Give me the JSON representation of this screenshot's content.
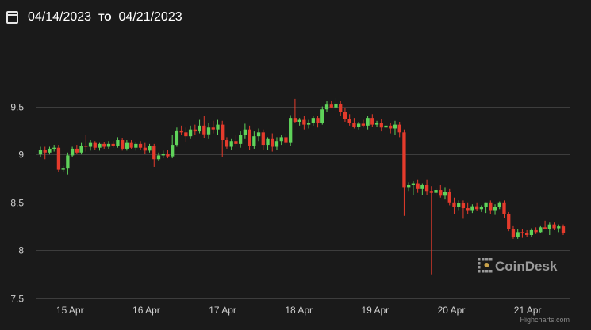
{
  "header": {
    "from_date": "04/14/2023",
    "to_label": "TO",
    "to_date": "04/21/2023"
  },
  "watermark": "CoinDesk",
  "credit": "Highcharts.com",
  "colors": {
    "up": "#5fd35a",
    "down": "#e53b2c",
    "grid": "#3d3d3d",
    "background": "#1a1a1a"
  },
  "chart_data": {
    "type": "candlestick",
    "ylim": [
      7.5,
      10.0
    ],
    "yticks": [
      7.5,
      8,
      8.5,
      9,
      9.5
    ],
    "xlim": [
      14.55,
      21.55
    ],
    "xticks": [
      {
        "x": 15,
        "label": "15 Apr"
      },
      {
        "x": 16,
        "label": "16 Apr"
      },
      {
        "x": 17,
        "label": "17 Apr"
      },
      {
        "x": 18,
        "label": "18 Apr"
      },
      {
        "x": 19,
        "label": "19 Apr"
      },
      {
        "x": 20,
        "label": "20 Apr"
      },
      {
        "x": 21,
        "label": "21 Apr"
      }
    ],
    "grid": true,
    "candles": [
      [
        9.0,
        9.08,
        8.97,
        9.05
      ],
      [
        9.05,
        9.08,
        8.95,
        9.02
      ],
      [
        9.02,
        9.08,
        9.0,
        9.06
      ],
      [
        9.06,
        9.1,
        9.03,
        9.07
      ],
      [
        9.07,
        9.1,
        8.82,
        8.84
      ],
      [
        8.84,
        8.88,
        8.82,
        8.86
      ],
      [
        8.86,
        9.02,
        8.79,
        8.99
      ],
      [
        8.99,
        9.08,
        8.97,
        9.06
      ],
      [
        9.06,
        9.1,
        9.01,
        9.02
      ],
      [
        9.02,
        9.12,
        9.0,
        9.09
      ],
      [
        9.09,
        9.2,
        9.03,
        9.08
      ],
      [
        9.08,
        9.15,
        9.04,
        9.12
      ],
      [
        9.12,
        9.14,
        9.05,
        9.07
      ],
      [
        9.07,
        9.12,
        9.04,
        9.11
      ],
      [
        9.11,
        9.13,
        9.06,
        9.08
      ],
      [
        9.08,
        9.14,
        9.06,
        9.11
      ],
      [
        9.11,
        9.14,
        9.07,
        9.09
      ],
      [
        9.09,
        9.18,
        9.07,
        9.15
      ],
      [
        9.15,
        9.17,
        9.04,
        9.06
      ],
      [
        9.06,
        9.15,
        9.04,
        9.12
      ],
      [
        9.12,
        9.15,
        9.06,
        9.07
      ],
      [
        9.07,
        9.13,
        9.04,
        9.11
      ],
      [
        9.11,
        9.14,
        9.05,
        9.07
      ],
      [
        9.07,
        9.12,
        9.01,
        9.04
      ],
      [
        9.04,
        9.11,
        9.02,
        9.09
      ],
      [
        9.09,
        9.11,
        8.87,
        8.95
      ],
      [
        8.95,
        9.02,
        8.93,
        8.99
      ],
      [
        8.99,
        9.04,
        8.96,
        9.01
      ],
      [
        9.01,
        9.05,
        8.96,
        8.98
      ],
      [
        8.98,
        9.2,
        8.96,
        9.1
      ],
      [
        9.1,
        9.28,
        9.08,
        9.25
      ],
      [
        9.25,
        9.3,
        9.2,
        9.23
      ],
      [
        9.23,
        9.28,
        9.13,
        9.19
      ],
      [
        9.19,
        9.3,
        9.16,
        9.26
      ],
      [
        9.26,
        9.31,
        9.2,
        9.24
      ],
      [
        9.24,
        9.36,
        9.22,
        9.3
      ],
      [
        9.3,
        9.4,
        9.17,
        9.21
      ],
      [
        9.21,
        9.33,
        9.16,
        9.28
      ],
      [
        9.28,
        9.35,
        9.22,
        9.26
      ],
      [
        9.26,
        9.36,
        9.2,
        9.31
      ],
      [
        9.31,
        9.35,
        8.97,
        9.15
      ],
      [
        9.15,
        9.18,
        9.06,
        9.08
      ],
      [
        9.08,
        9.16,
        9.05,
        9.14
      ],
      [
        9.14,
        9.2,
        9.08,
        9.11
      ],
      [
        9.11,
        9.24,
        9.07,
        9.2
      ],
      [
        9.2,
        9.32,
        9.16,
        9.26
      ],
      [
        9.26,
        9.3,
        9.05,
        9.09
      ],
      [
        9.09,
        9.24,
        9.06,
        9.19
      ],
      [
        9.19,
        9.27,
        9.14,
        9.23
      ],
      [
        9.23,
        9.26,
        9.05,
        9.1
      ],
      [
        9.1,
        9.18,
        9.05,
        9.16
      ],
      [
        9.16,
        9.22,
        9.03,
        9.08
      ],
      [
        9.08,
        9.18,
        9.05,
        9.14
      ],
      [
        9.14,
        9.2,
        9.1,
        9.18
      ],
      [
        9.18,
        9.22,
        9.1,
        9.12
      ],
      [
        9.12,
        9.41,
        9.09,
        9.38
      ],
      [
        9.38,
        9.58,
        9.33,
        9.34
      ],
      [
        9.34,
        9.38,
        9.3,
        9.36
      ],
      [
        9.36,
        9.4,
        9.26,
        9.31
      ],
      [
        9.31,
        9.36,
        9.27,
        9.33
      ],
      [
        9.33,
        9.4,
        9.3,
        9.38
      ],
      [
        9.38,
        9.4,
        9.28,
        9.33
      ],
      [
        9.33,
        9.5,
        9.31,
        9.47
      ],
      [
        9.47,
        9.56,
        9.44,
        9.52
      ],
      [
        9.52,
        9.56,
        9.48,
        9.49
      ],
      [
        9.49,
        9.59,
        9.45,
        9.53
      ],
      [
        9.53,
        9.56,
        9.4,
        9.44
      ],
      [
        9.44,
        9.48,
        9.34,
        9.37
      ],
      [
        9.37,
        9.42,
        9.3,
        9.33
      ],
      [
        9.33,
        9.38,
        9.27,
        9.29
      ],
      [
        9.29,
        9.34,
        9.26,
        9.32
      ],
      [
        9.32,
        9.36,
        9.28,
        9.3
      ],
      [
        9.3,
        9.4,
        9.26,
        9.38
      ],
      [
        9.38,
        9.42,
        9.29,
        9.31
      ],
      [
        9.31,
        9.35,
        9.29,
        9.33
      ],
      [
        9.33,
        9.37,
        9.24,
        9.28
      ],
      [
        9.28,
        9.32,
        9.25,
        9.3
      ],
      [
        9.3,
        9.33,
        9.22,
        9.27
      ],
      [
        9.27,
        9.35,
        9.2,
        9.31
      ],
      [
        9.31,
        9.34,
        9.18,
        9.23
      ],
      [
        9.23,
        9.26,
        8.36,
        8.66
      ],
      [
        8.66,
        8.71,
        8.62,
        8.68
      ],
      [
        8.68,
        8.72,
        8.58,
        8.7
      ],
      [
        8.7,
        8.74,
        8.6,
        8.64
      ],
      [
        8.64,
        8.7,
        8.58,
        8.68
      ],
      [
        8.68,
        8.74,
        8.58,
        8.62
      ],
      [
        8.62,
        8.67,
        7.75,
        8.6
      ],
      [
        8.6,
        8.65,
        8.57,
        8.63
      ],
      [
        8.63,
        8.68,
        8.55,
        8.57
      ],
      [
        8.57,
        8.66,
        8.53,
        8.61
      ],
      [
        8.61,
        8.64,
        8.47,
        8.5
      ],
      [
        8.5,
        8.55,
        8.38,
        8.45
      ],
      [
        8.45,
        8.52,
        8.42,
        8.49
      ],
      [
        8.49,
        8.52,
        8.33,
        8.44
      ],
      [
        8.44,
        8.5,
        8.38,
        8.42
      ],
      [
        8.42,
        8.48,
        8.39,
        8.46
      ],
      [
        8.46,
        8.5,
        8.41,
        8.43
      ],
      [
        8.43,
        8.47,
        8.4,
        8.45
      ],
      [
        8.45,
        8.5,
        8.39,
        8.5
      ],
      [
        8.5,
        8.52,
        8.38,
        8.42
      ],
      [
        8.42,
        8.48,
        8.37,
        8.45
      ],
      [
        8.45,
        8.51,
        8.43,
        8.5
      ],
      [
        8.5,
        8.52,
        8.34,
        8.38
      ],
      [
        8.38,
        8.4,
        8.2,
        8.22
      ],
      [
        8.22,
        8.26,
        8.12,
        8.14
      ],
      [
        8.14,
        8.22,
        8.12,
        8.19
      ],
      [
        8.19,
        8.22,
        8.13,
        8.18
      ],
      [
        8.18,
        8.21,
        8.14,
        8.16
      ],
      [
        8.16,
        8.23,
        8.14,
        8.21
      ],
      [
        8.21,
        8.24,
        8.17,
        8.19
      ],
      [
        8.19,
        8.26,
        8.18,
        8.24
      ],
      [
        8.24,
        8.31,
        8.22,
        8.22
      ],
      [
        8.22,
        8.29,
        8.16,
        8.27
      ],
      [
        8.27,
        8.29,
        8.21,
        8.23
      ],
      [
        8.23,
        8.27,
        8.19,
        8.25
      ],
      [
        8.25,
        8.27,
        8.16,
        8.18
      ]
    ]
  }
}
